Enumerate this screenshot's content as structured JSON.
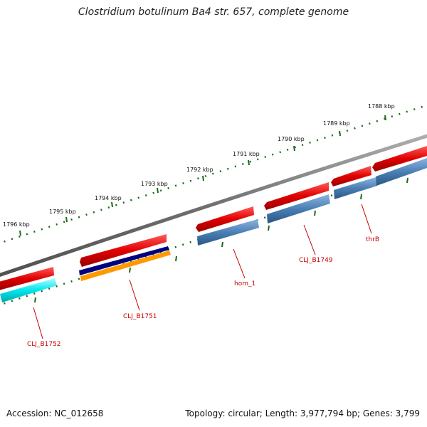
{
  "header": {
    "title": "Clostridium botulinum Ba4 str. 657, complete genome"
  },
  "footer": {
    "accession": "Accession: NC_012658",
    "summary": "Topology: circular; Length: 3,977,794 bp; Genes: 3,799"
  },
  "ruler": {
    "labels": [
      "1788 kbp",
      "1789 kbp",
      "1790 kbp",
      "1791 kbp",
      "1792 kbp",
      "1793 kbp",
      "1794 kbp",
      "1795 kbp",
      "1796 kbp"
    ]
  },
  "genes": {
    "labels": [
      "thrB",
      "CLJ_B1749",
      "hom_1",
      "CLJ_B1751",
      "CLJ_B1752"
    ]
  },
  "colors": {
    "backbone": "#7a7a7a",
    "forward": "#e60000",
    "cds": "#4a7fb5",
    "cyan": "#00e5ee",
    "navy": "#000080",
    "orange": "#ff9900",
    "ticks_major": "#1a6b1a",
    "ticks_minor": "#1a6b1a",
    "label_color": "#c80000"
  }
}
